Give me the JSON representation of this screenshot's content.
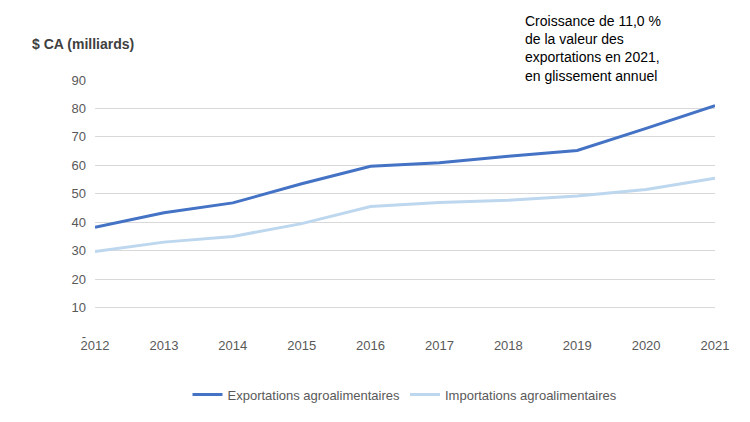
{
  "chart_data": {
    "type": "line",
    "y_label": "$ CA (milliards)",
    "annotation": [
      "Croissance de 11,0 %",
      "de la valeur des",
      "exportations en 2021,",
      "en glissement annuel"
    ],
    "categories": [
      "2012",
      "2013",
      "2014",
      "2015",
      "2016",
      "2017",
      "2018",
      "2019",
      "2020",
      "2021"
    ],
    "series": [
      {
        "name": "Exportations agroalimentaires",
        "color": "#4472c4",
        "values": [
          38.2,
          43.3,
          46.8,
          53.5,
          59.7,
          60.9,
          63.2,
          65.2,
          73.0,
          81.0
        ]
      },
      {
        "name": "Importations agroalimentaires",
        "color": "#bdd7ee",
        "values": [
          29.7,
          33.0,
          35.0,
          39.5,
          45.5,
          46.9,
          47.7,
          49.2,
          51.5,
          55.5
        ]
      }
    ],
    "ylim": [
      0,
      90
    ],
    "yticks": [
      {
        "value": 0,
        "label": "-"
      },
      10,
      20,
      30,
      40,
      50,
      60,
      70,
      80,
      90
    ],
    "grid": true,
    "legend": "bottom"
  }
}
